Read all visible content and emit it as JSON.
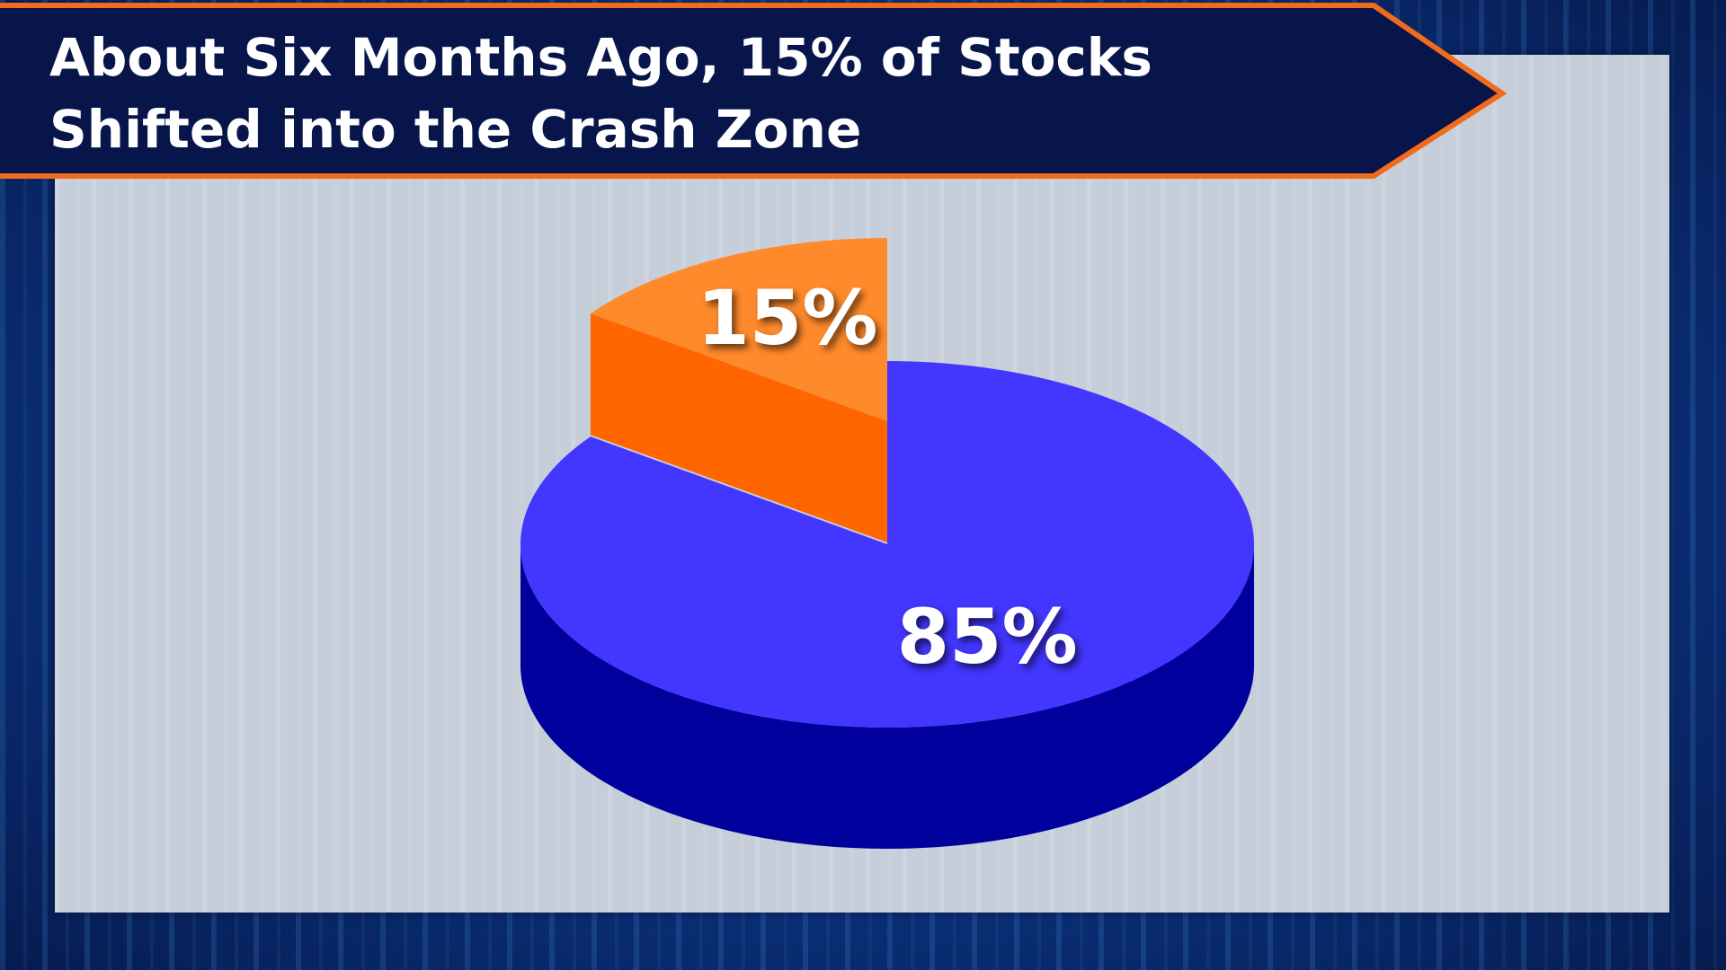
{
  "chart_data": {
    "type": "pie",
    "title": "About Six Months Ago, 15% of Stocks Shifted into the Crash Zone",
    "values": [
      15,
      85
    ],
    "value_labels": [
      "15%",
      "85%"
    ],
    "colors": [
      "#ff8a2c",
      "#4236ff"
    ],
    "side_colors": [
      "#ff6600",
      "#00009c"
    ]
  }
}
